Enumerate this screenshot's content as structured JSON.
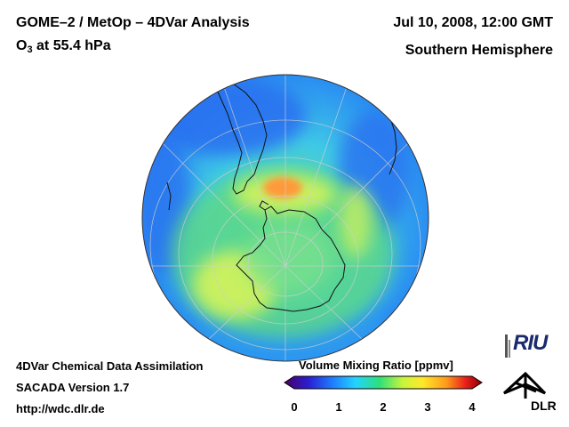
{
  "header": {
    "title_line1": "GOME–2 / MetOp – 4DVar Analysis",
    "species_prefix": "O",
    "species_sub": "3",
    "species_suffix": " at 55.4 hPa",
    "date": "Jul 10, 2008, 12:00 GMT",
    "region": "Southern Hemisphere"
  },
  "footer": {
    "line1": "4DVar Chemical Data Assimilation",
    "line2": "SACADA Version 1.7",
    "line3": "http://wdc.dlr.de"
  },
  "colorbar": {
    "title": "Volume Mixing Ratio [ppmv]",
    "range": [
      0,
      4
    ],
    "ticks": [
      "0",
      "1",
      "2",
      "3",
      "4"
    ],
    "colors": [
      "#4b0066",
      "#2a1dd0",
      "#1e7bff",
      "#22d4ff",
      "#2de07a",
      "#c8f53a",
      "#ffe82a",
      "#ff9a1a",
      "#e81c1c",
      "#8b0000"
    ]
  },
  "map_legend": {
    "colors": {
      "blue_low": "#2a72f0",
      "cyan": "#22c8f0",
      "green": "#5cd88a",
      "yellow_green": "#c8f060",
      "orange": "#ff9a3a",
      "coast": "#111111",
      "grid": "#cfcfcf"
    }
  },
  "logos": {
    "riu": "RIU",
    "dlr": "DLR"
  }
}
